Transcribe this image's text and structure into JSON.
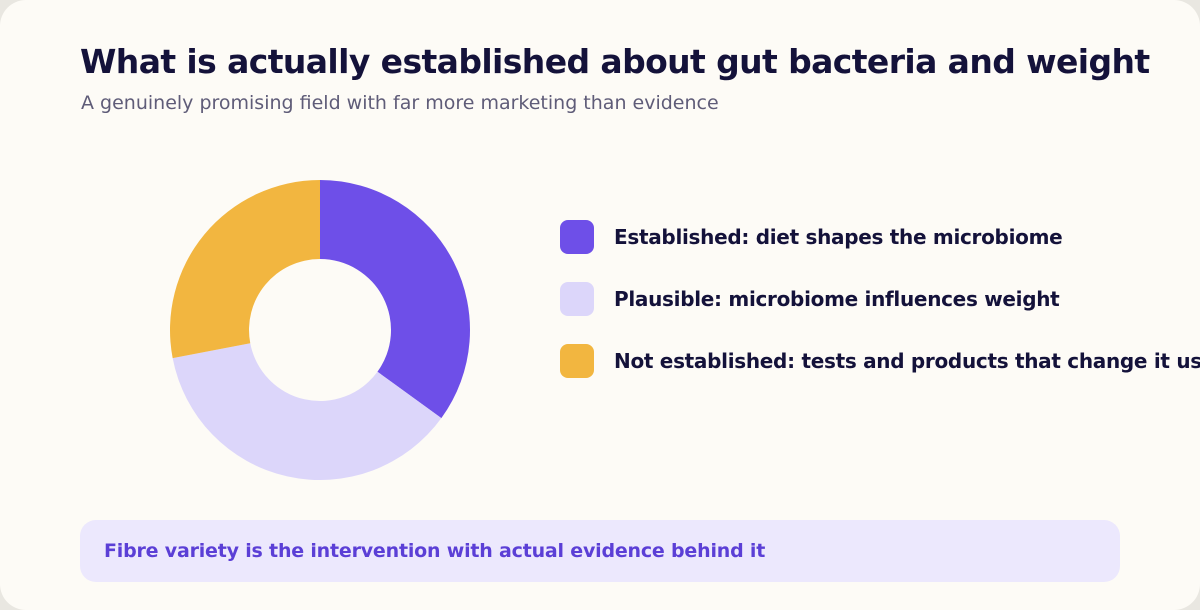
{
  "header": {
    "title": "What is actually established about gut bacteria and weight",
    "subtitle": "A genuinely promising field with far more marketing than evidence"
  },
  "chart_data": {
    "type": "pie",
    "donut": true,
    "title": "What is actually established about gut bacteria and weight",
    "subtitle": "A genuinely promising field with far more marketing than evidence",
    "legend_position": "right",
    "series": [
      {
        "name": "Established: diet shapes the microbiome",
        "value": 35,
        "color": "#6e4fe8"
      },
      {
        "name": "Plausible: microbiome influences weight",
        "value": 37,
        "color": "#dcd6fa"
      },
      {
        "name": "Not established: tests and products that change it usefully",
        "value": 28,
        "color": "#f2b640"
      }
    ]
  },
  "legend": {
    "items": [
      {
        "label": "Established: diet shapes the microbiome",
        "color": "#6e4fe8"
      },
      {
        "label": "Plausible: microbiome influences weight",
        "color": "#dcd6fa"
      },
      {
        "label": "Not established: tests and products that change it usefully",
        "color": "#f2b640"
      }
    ]
  },
  "callout": {
    "text": "Fibre variety is the intervention with actual evidence behind it"
  },
  "colors": {
    "background": "#fdfbf6",
    "title": "#14123a",
    "subtitle": "#5f5c78",
    "callout_background": "#ece8fd",
    "callout_text": "#5b3fd6"
  }
}
